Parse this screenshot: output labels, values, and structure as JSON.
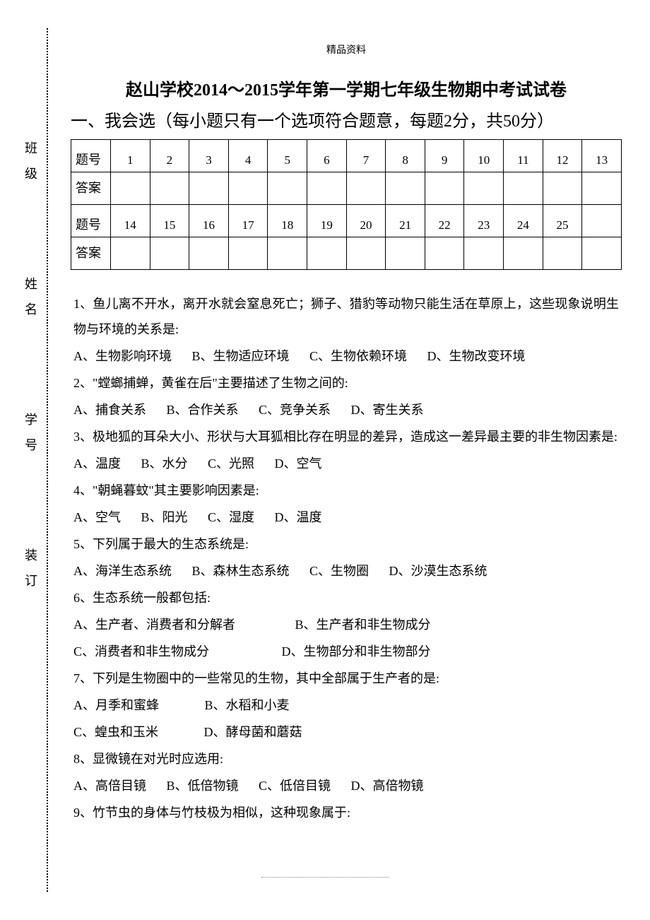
{
  "header_small": "精品资料",
  "title": "赵山学校2014～2015学年第一学期七年级生物期中考试试卷",
  "section1_heading": "一、我会选（每小题只有一个选项符合题意，每题2分，共50分）",
  "side_labels": [
    "班级",
    "姓名",
    "学号",
    "装订"
  ],
  "grid": {
    "row_label_qnum": "题号",
    "row_label_ans": "答案",
    "row1": [
      "1",
      "2",
      "3",
      "4",
      "5",
      "6",
      "7",
      "8",
      "9",
      "10",
      "11",
      "12",
      "13"
    ],
    "row2": [
      "14",
      "15",
      "16",
      "17",
      "18",
      "19",
      "20",
      "21",
      "22",
      "23",
      "24",
      "25",
      ""
    ]
  },
  "q1": {
    "text": "1、鱼儿离不开水，离开水就会窒息死亡；狮子、猎豹等动物只能生活在草原上，这些现象说明生物与环境的关系是:",
    "a": "A、生物影响环境",
    "b": "B、生物适应环境",
    "c": "C、生物依赖环境",
    "d": "D、生物改变环境"
  },
  "q2": {
    "text": "2、\"螳螂捕蝉，黄雀在后\"主要描述了生物之间的:",
    "a": "A、捕食关系",
    "b": "B、合作关系",
    "c": "C、竞争关系",
    "d": "D、寄生关系"
  },
  "q3": {
    "text": "3、极地狐的耳朵大小、形状与大耳狐相比存在明显的差异，造成这一差异最主要的非生物因素是:",
    "a": "A、温度",
    "b": "B、水分",
    "c": "C、光照",
    "d": "D、空气"
  },
  "q4": {
    "text": "4、\"朝蝇暮蚊\"其主要影响因素是:",
    "a": "A、空气",
    "b": "B、阳光",
    "c": "C、湿度",
    "d": "D、温度"
  },
  "q5": {
    "text": "5、下列属于最大的生态系统是:",
    "a": "A、海洋生态系统",
    "b": "B、森林生态系统",
    "c": "C、生物圈",
    "d": "D、沙漠生态系统"
  },
  "q6": {
    "text": "6、生态系统一般都包括:",
    "a": "A、生产者、消费者和分解者",
    "b": "B、生产者和非生物成分",
    "c": "C、消费者和非生物成分",
    "d": "D、生物部分和非生物部分"
  },
  "q7": {
    "text": "7、下列是生物圈中的一些常见的生物，其中全部属于生产者的是:",
    "a": "A、月季和蜜蜂",
    "b": "B、水稻和小麦",
    "c": "C、蝗虫和玉米",
    "d": "D、酵母菌和蘑菇"
  },
  "q8": {
    "text": "8、显微镜在对光时应选用:",
    "a": "A、高倍目镜",
    "b": "B、低倍物镜",
    "c": "C、低倍目镜",
    "d": "D、高倍物镜"
  },
  "q9": {
    "text": "9、竹节虫的身体与竹枝极为相似，这种现象属于:"
  }
}
